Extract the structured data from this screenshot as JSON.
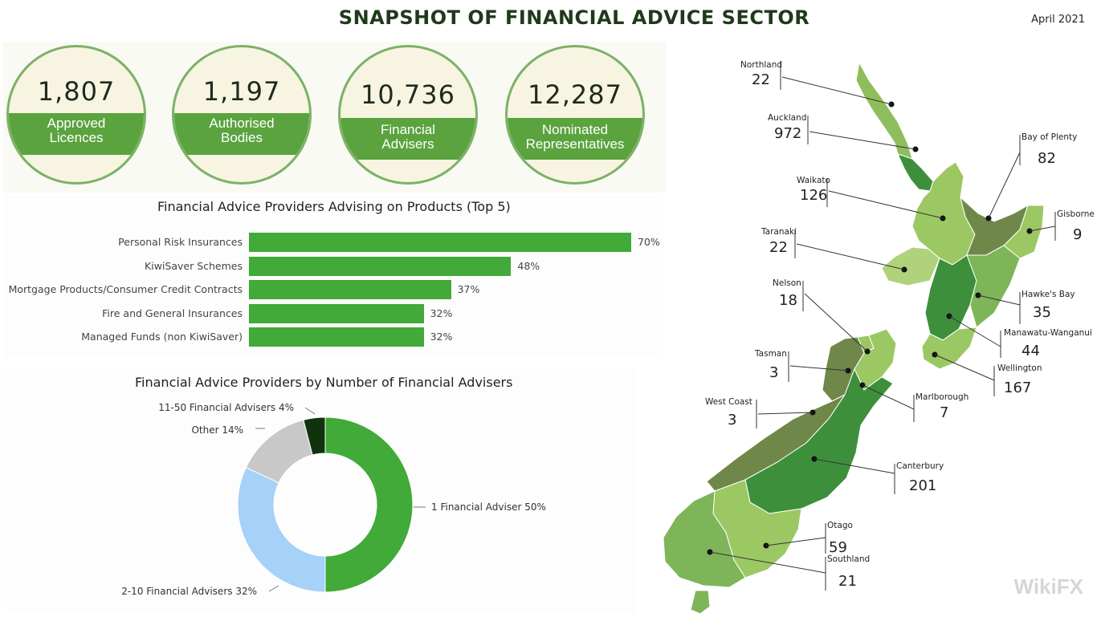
{
  "header": {
    "title": "SNAPSHOT OF FINANCIAL ADVICE SECTOR",
    "date": "April 2021"
  },
  "stats": [
    {
      "value": "1,807",
      "label_line1": "Approved",
      "label_line2": "Licences"
    },
    {
      "value": "1,197",
      "label_line1": "Authorised",
      "label_line2": "Bodies"
    },
    {
      "value": "10,736",
      "label_line1": "Financial",
      "label_line2": "Advisers"
    },
    {
      "value": "12,287",
      "label_line1": "Nominated",
      "label_line2": "Representatives"
    }
  ],
  "chart_data": [
    {
      "type": "bar",
      "orientation": "horizontal",
      "title": "Financial Advice Providers Advising on Products (Top 5)",
      "categories": [
        "Personal Risk Insurances",
        "KiwiSaver Schemes",
        "Mortgage Products/Consumer Credit Contracts",
        "Fire and General Insurances",
        "Managed Funds (non KiwiSaver)"
      ],
      "values": [
        70,
        48,
        37,
        32,
        32
      ],
      "value_labels": [
        "70%",
        "48%",
        "37%",
        "32%",
        "32%"
      ],
      "xlim": [
        0,
        70
      ],
      "color": "#41aa38"
    },
    {
      "type": "pie",
      "donut": true,
      "title": "Financial Advice Providers by Number of Financial Advisers",
      "slices": [
        {
          "label": "1 Financial Adviser 50%",
          "value": 50,
          "color": "#41aa38"
        },
        {
          "label": "2-10 Financial Advisers 32%",
          "value": 32,
          "color": "#a6d1f8"
        },
        {
          "label": "Other 14%",
          "value": 14,
          "color": "#c8c8c8"
        },
        {
          "label": "11-50 Financial Advisers 4%",
          "value": 4,
          "color": "#10330e"
        }
      ]
    }
  ],
  "regions": [
    {
      "name": "Northland",
      "count": "22"
    },
    {
      "name": "Auckland",
      "count": "972"
    },
    {
      "name": "Bay of Plenty",
      "count": "82"
    },
    {
      "name": "Waikato",
      "count": "126"
    },
    {
      "name": "Gisborne",
      "count": "9"
    },
    {
      "name": "Taranaki",
      "count": "22"
    },
    {
      "name": "Nelson",
      "count": "18"
    },
    {
      "name": "Hawke's Bay",
      "count": "35"
    },
    {
      "name": "Manawatu-Wanganui",
      "count": "44"
    },
    {
      "name": "Tasman",
      "count": "3"
    },
    {
      "name": "Wellington",
      "count": "167"
    },
    {
      "name": "West Coast",
      "count": "3"
    },
    {
      "name": "Marlborough",
      "count": "7"
    },
    {
      "name": "Canterbury",
      "count": "201"
    },
    {
      "name": "Otago",
      "count": "59"
    },
    {
      "name": "Southland",
      "count": "21"
    }
  ],
  "colors": {
    "accent": "#5aa33f",
    "badge_bg": "#f7f5e2",
    "dark_green": "#6f8748",
    "mid_green": "#4a9a44",
    "light_green": "#9cc864"
  }
}
